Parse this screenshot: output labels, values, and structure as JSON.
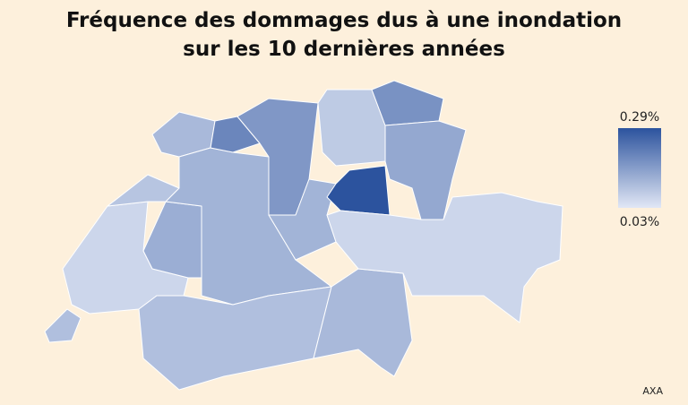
{
  "chart_data": {
    "type": "choropleth",
    "title": [
      "Fréquence des dommages dus à une inondation",
      "sur les 10 dernières années"
    ],
    "values": [
      0.1,
      0.06,
      0.13,
      0.09,
      0.11,
      0.12,
      0.1,
      0.2,
      0.17,
      0.12,
      0.08,
      0.29,
      0.18,
      0.14,
      0.11,
      0.06
    ],
    "colorscale": [
      "#e1e7f5",
      "#2c539e"
    ],
    "legend_ticks": [
      {
        "value": 0.29,
        "label": "0.29%"
      },
      {
        "value": 0.03,
        "label": "0.03%"
      }
    ],
    "source": "AXA"
  }
}
